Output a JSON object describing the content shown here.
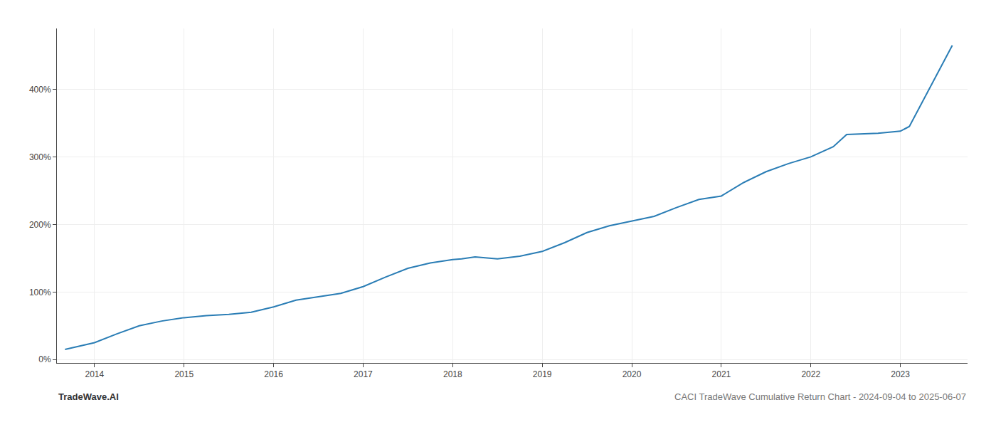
{
  "chart_data": {
    "type": "line",
    "title": "CACI TradeWave Cumulative Return Chart - 2024-09-04 to 2025-06-07",
    "annotations": [
      "TradeWave.AI"
    ],
    "color": "#2a7db5",
    "grid": true,
    "x": [
      2013.67,
      2013.83,
      2014.0,
      2014.25,
      2014.5,
      2014.75,
      2015.0,
      2015.25,
      2015.5,
      2015.75,
      2016.0,
      2016.25,
      2016.5,
      2016.75,
      2017.0,
      2017.25,
      2017.5,
      2017.75,
      2018.0,
      2018.1,
      2018.25,
      2018.5,
      2018.75,
      2019.0,
      2019.25,
      2019.5,
      2019.75,
      2020.0,
      2020.25,
      2020.5,
      2020.75,
      2021.0,
      2021.25,
      2021.5,
      2021.75,
      2022.0,
      2022.25,
      2022.4,
      2022.75,
      2023.0,
      2023.1,
      2023.4,
      2023.58
    ],
    "values": [
      15,
      20,
      25,
      38,
      50,
      57,
      62,
      65,
      67,
      70,
      78,
      88,
      93,
      98,
      108,
      122,
      135,
      143,
      148,
      149,
      152,
      149,
      153,
      160,
      173,
      188,
      198,
      205,
      212,
      225,
      237,
      242,
      262,
      278,
      290,
      300,
      315,
      333,
      335,
      338,
      345,
      420,
      465
    ],
    "xlim": [
      2013.58,
      2023.75
    ],
    "xticks": [
      2014,
      2015,
      2016,
      2017,
      2018,
      2019,
      2020,
      2021,
      2022,
      2023
    ],
    "ylim": [
      -5,
      490
    ],
    "yticks": [
      {
        "value": 0,
        "label": "0%"
      },
      {
        "value": 100,
        "label": "100%"
      },
      {
        "value": 200,
        "label": "200%"
      },
      {
        "value": 300,
        "label": "300%"
      },
      {
        "value": 400,
        "label": "400%"
      }
    ]
  }
}
